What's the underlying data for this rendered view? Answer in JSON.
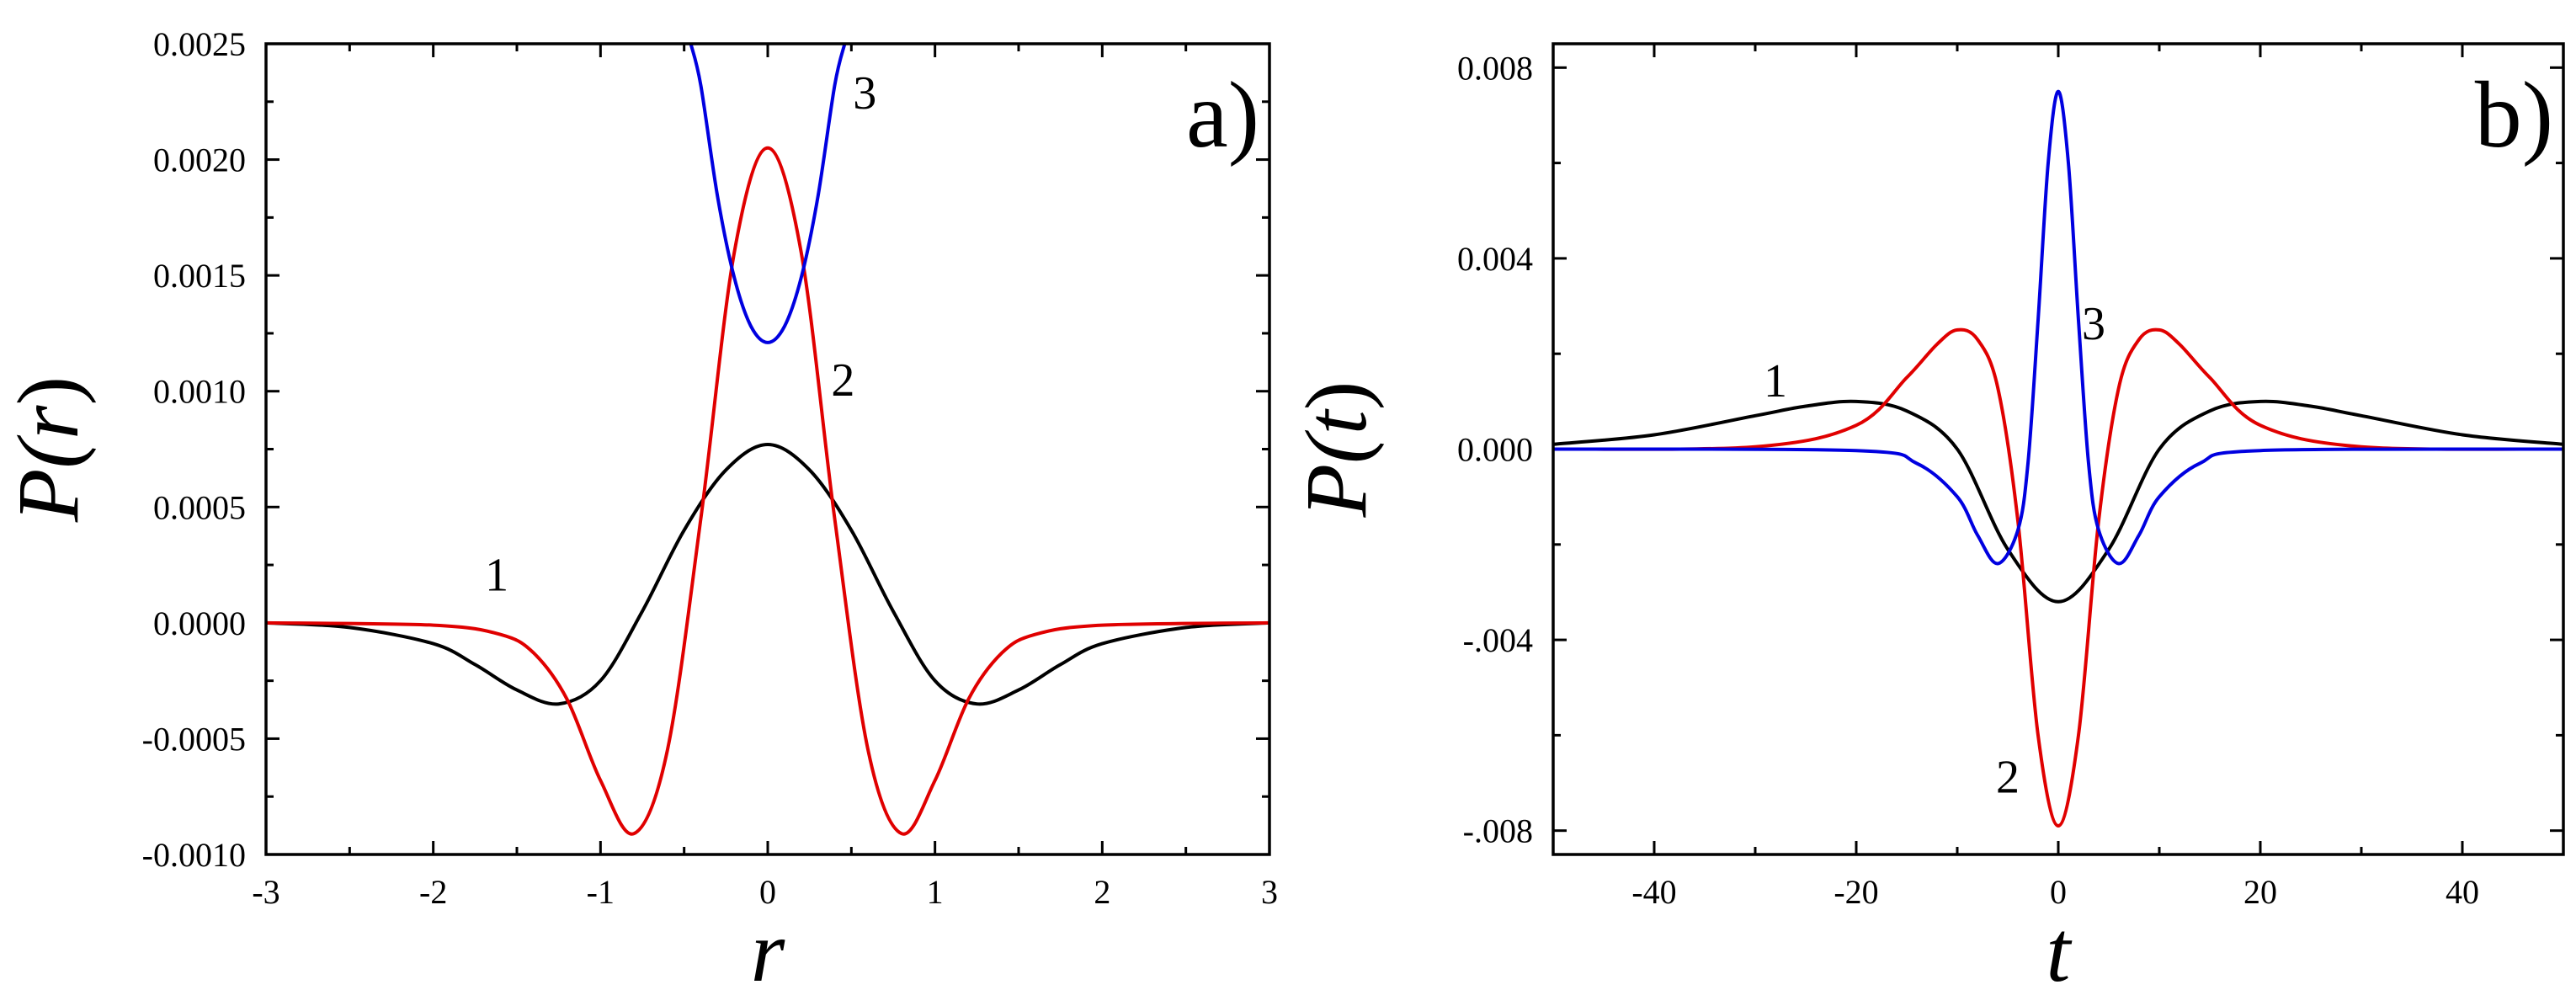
{
  "chart_data": [
    {
      "type": "line",
      "panel_label": "a)",
      "xlabel": "r",
      "ylabel_prefix": "P(",
      "ylabel_var": "r",
      "ylabel_suffix": ")",
      "xlim": [
        -3,
        3
      ],
      "ylim": [
        -0.001,
        0.0025
      ],
      "xticks": [
        -3,
        -2,
        -1,
        0,
        1,
        2,
        3
      ],
      "xtick_labels": [
        "-3",
        "-2",
        "-1",
        "0",
        "1",
        "2",
        "3"
      ],
      "yticks": [
        -0.001,
        -0.0005,
        0,
        0.0005,
        0.001,
        0.0015,
        0.002,
        0.0025
      ],
      "ytick_labels": [
        "-0.0010",
        "-0.0005",
        "0.0000",
        "0.0005",
        "0.0010",
        "0.0015",
        "0.0020",
        "0.0025"
      ],
      "grid": false,
      "series": [
        {
          "name": "1",
          "color": "#000000",
          "x": [
            -3,
            -2.5,
            -2,
            -1.75,
            -1.5,
            -1.25,
            -1,
            -0.75,
            -0.5,
            -0.25,
            0,
            0.25,
            0.5,
            0.75,
            1,
            1.25,
            1.5,
            1.75,
            2,
            2.5,
            3
          ],
          "y": [
            0,
            -2e-05,
            -9e-05,
            -0.00018,
            -0.00029,
            -0.00035,
            -0.00025,
            5e-05,
            0.0004,
            0.00066,
            0.00077,
            0.00066,
            0.0004,
            5e-05,
            -0.00025,
            -0.00035,
            -0.00029,
            -0.00018,
            -9e-05,
            -2e-05,
            0
          ]
        },
        {
          "name": "2",
          "color": "#e00000",
          "x": [
            -3,
            -2,
            -1.6,
            -1.4,
            -1.2,
            -1,
            -0.8,
            -0.6,
            -0.4,
            -0.2,
            0,
            0.2,
            0.4,
            0.6,
            0.8,
            1,
            1.2,
            1.4,
            1.6,
            2,
            3
          ],
          "y": [
            0,
            -1e-05,
            -5e-05,
            -0.00013,
            -0.00033,
            -0.00068,
            -0.00091,
            -0.00055,
            0.00045,
            0.0016,
            0.00205,
            0.0016,
            0.00045,
            -0.00055,
            -0.00091,
            -0.00068,
            -0.00033,
            -0.00013,
            -5e-05,
            -1e-05,
            0
          ]
        },
        {
          "name": "3",
          "color": "#0000e0",
          "x": [
            -0.46,
            -0.4,
            -0.3,
            -0.2,
            -0.1,
            0,
            0.1,
            0.2,
            0.3,
            0.4,
            0.46
          ],
          "y": [
            0.0025,
            0.00232,
            0.00184,
            0.00149,
            0.00128,
            0.00121,
            0.00128,
            0.00149,
            0.00184,
            0.00232,
            0.0025
          ]
        }
      ],
      "annotations": [
        {
          "text": "1",
          "x": -1.62,
          "y": 0.00014
        },
        {
          "text": "2",
          "x": 0.45,
          "y": 0.00098
        },
        {
          "text": "3",
          "x": 0.58,
          "y": 0.00222
        }
      ]
    },
    {
      "type": "line",
      "panel_label": "b)",
      "xlabel": "t",
      "ylabel_prefix": "P(",
      "ylabel_var": "t",
      "ylabel_suffix": ")",
      "xlim": [
        -50,
        50
      ],
      "ylim": [
        -0.0085,
        0.0085
      ],
      "xticks": [
        -40,
        -20,
        0,
        20,
        40
      ],
      "xtick_labels": [
        "-40",
        "-20",
        "0",
        "20",
        "40"
      ],
      "yticks": [
        -0.008,
        -0.004,
        0,
        0.004,
        0.008
      ],
      "ytick_labels": [
        "-.008",
        "-.004",
        "0.000",
        "0.004",
        "0.008"
      ],
      "grid": false,
      "series": [
        {
          "name": "1",
          "color": "#000000",
          "x": [
            -50,
            -40,
            -30,
            -25,
            -20,
            -15,
            -10,
            -5,
            0,
            5,
            10,
            15,
            20,
            25,
            30,
            40,
            50
          ],
          "y": [
            0.0001,
            0.0003,
            0.0007,
            0.0009,
            0.001,
            0.0008,
            0,
            -0.0021,
            -0.0032,
            -0.0021,
            0,
            0.0008,
            0.001,
            0.0009,
            0.0007,
            0.0003,
            0.0001
          ]
        },
        {
          "name": "2",
          "color": "#e00000",
          "x": [
            -50,
            -30,
            -20,
            -15,
            -12,
            -10,
            -8,
            -6,
            -4,
            -2,
            0,
            2,
            4,
            6,
            8,
            10,
            12,
            15,
            20,
            30,
            50
          ],
          "y": [
            0,
            5e-05,
            0.0005,
            0.0015,
            0.0022,
            0.0025,
            0.0023,
            0.0013,
            -0.0015,
            -0.006,
            -0.0079,
            -0.006,
            -0.0015,
            0.0013,
            0.0023,
            0.0025,
            0.0022,
            0.0015,
            0.0005,
            5e-05,
            0
          ]
        },
        {
          "name": "3",
          "color": "#0000e0",
          "x": [
            -50,
            -20,
            -14,
            -10,
            -8,
            -6,
            -4,
            -3,
            -2,
            -1,
            0,
            1,
            2,
            3,
            4,
            6,
            8,
            10,
            14,
            20,
            50
          ],
          "y": [
            0,
            -3e-05,
            -0.0003,
            -0.001,
            -0.0018,
            -0.0024,
            -0.0017,
            -0.0003,
            0.0027,
            0.006,
            0.0075,
            0.006,
            0.0027,
            -0.0003,
            -0.0017,
            -0.0024,
            -0.0018,
            -0.001,
            -0.0003,
            -3e-05,
            0
          ]
        }
      ],
      "annotations": [
        {
          "text": "1",
          "x": -28,
          "y": 0.0011
        },
        {
          "text": "2",
          "x": -5,
          "y": -0.0072
        },
        {
          "text": "3",
          "x": 3.5,
          "y": 0.0023
        }
      ]
    }
  ]
}
